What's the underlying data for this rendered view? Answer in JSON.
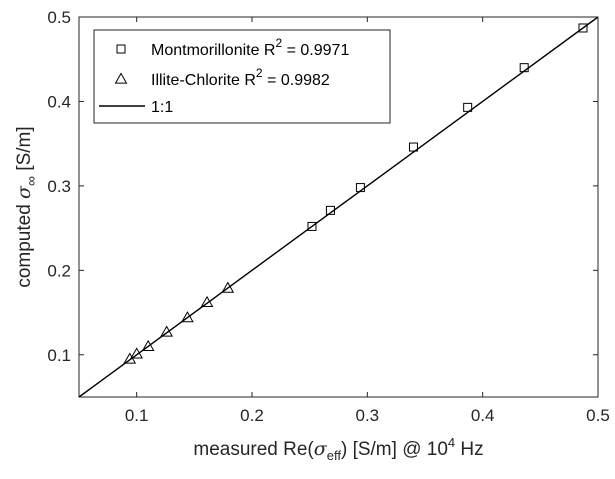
{
  "chart_data": {
    "type": "scatter",
    "xlabel": {
      "prefix": "measured Re(",
      "symbol": "σ",
      "subscript": "eff",
      "suffix": ") [S/m] @ 10",
      "superscript": "4",
      "unit": " Hz"
    },
    "ylabel": {
      "prefix": "computed ",
      "symbol": "σ",
      "subscript": "∞",
      "suffix": " [S/m]"
    },
    "xlim": [
      0.05,
      0.5
    ],
    "ylim": [
      0.05,
      0.5
    ],
    "xticks": [
      "0.1",
      "0.2",
      "0.3",
      "0.4",
      "0.5"
    ],
    "xtick_values": [
      0.1,
      0.2,
      0.3,
      0.4,
      0.5
    ],
    "yticks": [
      "0.1",
      "0.2",
      "0.3",
      "0.4",
      "0.5"
    ],
    "ytick_values": [
      0.1,
      0.2,
      0.3,
      0.4,
      0.5
    ],
    "grid": false,
    "legend_position": "top-left",
    "series": [
      {
        "name": "Montmorillonite R",
        "r2_exponent": "2",
        "r2_value": " = 0.9971",
        "marker": "square",
        "x": [
          0.252,
          0.268,
          0.294,
          0.34,
          0.387,
          0.436,
          0.487
        ],
        "y": [
          0.252,
          0.271,
          0.298,
          0.346,
          0.393,
          0.44,
          0.487
        ]
      },
      {
        "name": "Illite-Chlorite R",
        "r2_exponent": "2",
        "r2_value": " = 0.9982",
        "marker": "triangle",
        "x": [
          0.094,
          0.1,
          0.11,
          0.126,
          0.144,
          0.161,
          0.179
        ],
        "y": [
          0.095,
          0.101,
          0.11,
          0.127,
          0.144,
          0.162,
          0.179
        ]
      },
      {
        "name": "1:1",
        "marker": "line",
        "x": [
          0.05,
          0.5
        ],
        "y": [
          0.05,
          0.5
        ]
      }
    ]
  }
}
